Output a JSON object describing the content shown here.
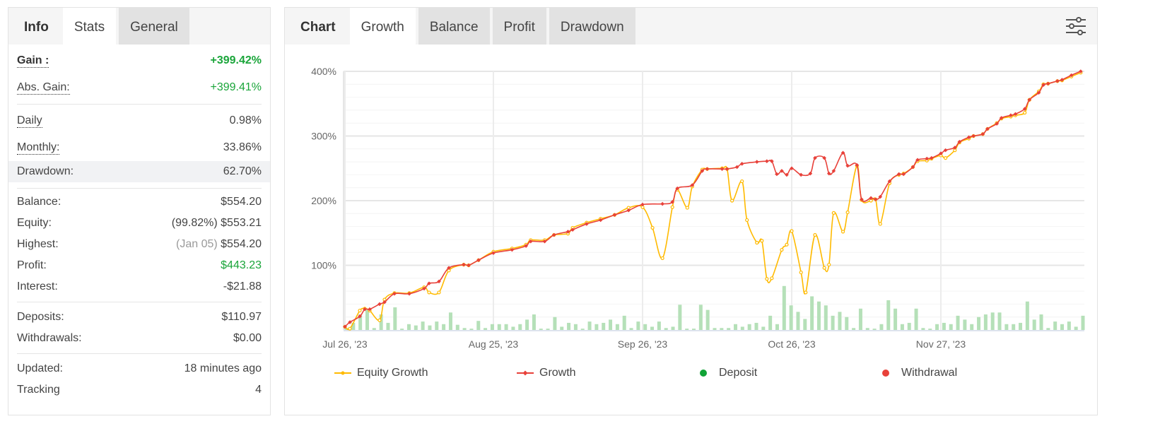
{
  "left_panel": {
    "tabs": [
      "Info",
      "Stats",
      "General"
    ],
    "active_tab": "Stats",
    "gain": {
      "label": "Gain :",
      "value": "+399.42%"
    },
    "abs_gain": {
      "label": "Abs. Gain:",
      "value": "+399.41%"
    },
    "daily": {
      "label": "Daily",
      "value": "0.98%"
    },
    "monthly": {
      "label": "Monthly:",
      "value": "33.86%"
    },
    "drawdown": {
      "label": "Drawdown:",
      "value": "62.70%"
    },
    "balance": {
      "label": "Balance:",
      "value": "$554.20"
    },
    "equity": {
      "label": "Equity:",
      "note": "(99.82%)",
      "value": "$553.21"
    },
    "highest": {
      "label": "Highest:",
      "note": "(Jan 05)",
      "value": "$554.20"
    },
    "profit": {
      "label": "Profit:",
      "value": "$443.23"
    },
    "interest": {
      "label": "Interest:",
      "value": "-$21.88"
    },
    "deposits": {
      "label": "Deposits:",
      "value": "$110.97"
    },
    "withdrawals": {
      "label": "Withdrawals:",
      "value": "$0.00"
    },
    "updated": {
      "label": "Updated:",
      "value": "18 minutes ago"
    },
    "tracking": {
      "label": "Tracking",
      "value": "4"
    }
  },
  "right_panel": {
    "title": "Chart",
    "tabs": [
      "Growth",
      "Balance",
      "Profit",
      "Drawdown"
    ],
    "active_tab": "Growth",
    "settings_icon": "sliders-icon"
  },
  "colors": {
    "equity": "#ffba00",
    "growth": "#e8413a",
    "bars": "#b5e0b8",
    "deposit": "#10a336",
    "withdrawal": "#e8413a",
    "positive": "#1aa53a"
  },
  "chart_data": {
    "type": "line",
    "ylim": [
      0,
      400
    ],
    "yticks": [
      "100%",
      "200%",
      "300%",
      "400%"
    ],
    "ytick_values": [
      100,
      200,
      300,
      400
    ],
    "xticks": [
      "Jul 26, '23",
      "Aug 25, '23",
      "Sep 26, '23",
      "Oct 26, '23",
      "Nov 27, '23"
    ],
    "xtick_dates": [
      "2023-07-26",
      "2023-08-25",
      "2023-09-26",
      "2023-10-26",
      "2023-11-27"
    ],
    "grid": true,
    "legend_position": "bottom",
    "legend": [
      "Equity Growth",
      "Growth",
      "Deposit",
      "Withdrawal"
    ],
    "series": [
      {
        "name": "Growth",
        "points": [
          [
            "2023-07-26",
            5
          ],
          [
            "2023-07-27",
            12
          ],
          [
            "2023-07-29",
            21
          ],
          [
            "2023-07-30",
            32
          ],
          [
            "2023-07-31",
            32
          ],
          [
            "2023-08-02",
            40
          ],
          [
            "2023-08-03",
            43
          ],
          [
            "2023-08-05",
            56
          ],
          [
            "2023-08-08",
            56
          ],
          [
            "2023-08-11",
            64
          ],
          [
            "2023-08-12",
            72
          ],
          [
            "2023-08-14",
            75
          ],
          [
            "2023-08-16",
            96
          ],
          [
            "2023-08-19",
            101
          ],
          [
            "2023-08-20",
            100
          ],
          [
            "2023-08-22",
            108
          ],
          [
            "2023-08-25",
            119
          ],
          [
            "2023-08-29",
            124
          ],
          [
            "2023-09-01",
            130
          ],
          [
            "2023-09-02",
            137
          ],
          [
            "2023-09-05",
            137
          ],
          [
            "2023-09-07",
            147
          ],
          [
            "2023-09-10",
            152
          ],
          [
            "2023-09-11",
            155
          ],
          [
            "2023-09-14",
            164
          ],
          [
            "2023-09-17",
            170
          ],
          [
            "2023-09-20",
            178
          ],
          [
            "2023-09-23",
            185
          ],
          [
            "2023-09-26",
            194
          ],
          [
            "2023-09-30",
            195
          ],
          [
            "2023-10-02",
            198
          ],
          [
            "2023-10-03",
            219
          ],
          [
            "2023-10-06",
            224
          ],
          [
            "2023-10-08",
            246
          ],
          [
            "2023-10-09",
            249
          ],
          [
            "2023-10-12",
            249
          ],
          [
            "2023-10-13",
            249
          ],
          [
            "2023-10-15",
            252
          ],
          [
            "2023-10-16",
            257
          ],
          [
            "2023-10-19",
            260
          ],
          [
            "2023-10-21",
            261
          ],
          [
            "2023-10-22",
            261
          ],
          [
            "2023-10-23",
            241
          ],
          [
            "2023-10-24",
            246
          ],
          [
            "2023-10-25",
            240
          ],
          [
            "2023-10-26",
            250
          ],
          [
            "2023-10-28",
            240
          ],
          [
            "2023-10-30",
            242
          ],
          [
            "2023-10-31",
            266
          ],
          [
            "2023-11-02",
            266
          ],
          [
            "2023-11-03",
            242
          ],
          [
            "2023-11-04",
            246
          ],
          [
            "2023-11-06",
            274
          ],
          [
            "2023-11-07",
            254
          ],
          [
            "2023-11-09",
            255
          ],
          [
            "2023-11-10",
            202
          ],
          [
            "2023-11-12",
            204
          ],
          [
            "2023-11-13",
            202
          ],
          [
            "2023-11-14",
            206
          ],
          [
            "2023-11-16",
            230
          ],
          [
            "2023-11-18",
            241
          ],
          [
            "2023-11-19",
            241
          ],
          [
            "2023-11-21",
            252
          ],
          [
            "2023-11-22",
            263
          ],
          [
            "2023-11-24",
            265
          ],
          [
            "2023-11-25",
            266
          ],
          [
            "2023-11-27",
            273
          ],
          [
            "2023-11-28",
            278
          ],
          [
            "2023-11-30",
            282
          ],
          [
            "2023-12-01",
            291
          ],
          [
            "2023-12-03",
            298
          ],
          [
            "2023-12-04",
            300
          ],
          [
            "2023-12-06",
            303
          ],
          [
            "2023-12-07",
            311
          ],
          [
            "2023-12-09",
            319
          ],
          [
            "2023-12-10",
            328
          ],
          [
            "2023-12-12",
            332
          ],
          [
            "2023-12-13",
            334
          ],
          [
            "2023-12-15",
            342
          ],
          [
            "2023-12-16",
            356
          ],
          [
            "2023-12-18",
            367
          ],
          [
            "2023-12-19",
            379
          ],
          [
            "2023-12-20",
            381
          ],
          [
            "2023-12-22",
            385
          ],
          [
            "2023-12-23",
            387
          ],
          [
            "2023-12-25",
            394
          ],
          [
            "2023-12-27",
            400
          ]
        ]
      },
      {
        "name": "Equity Growth",
        "points": [
          [
            "2023-07-26",
            5
          ],
          [
            "2023-07-27",
            2
          ],
          [
            "2023-07-29",
            30
          ],
          [
            "2023-07-30",
            33
          ],
          [
            "2023-07-31",
            30
          ],
          [
            "2023-08-02",
            15
          ],
          [
            "2023-08-03",
            47
          ],
          [
            "2023-08-05",
            57
          ],
          [
            "2023-08-08",
            57
          ],
          [
            "2023-08-11",
            66
          ],
          [
            "2023-08-12",
            58
          ],
          [
            "2023-08-14",
            58
          ],
          [
            "2023-08-16",
            92
          ],
          [
            "2023-08-19",
            101
          ],
          [
            "2023-08-20",
            100
          ],
          [
            "2023-08-22",
            108
          ],
          [
            "2023-08-25",
            121
          ],
          [
            "2023-08-29",
            126
          ],
          [
            "2023-09-01",
            132
          ],
          [
            "2023-09-02",
            139
          ],
          [
            "2023-09-05",
            139
          ],
          [
            "2023-09-07",
            147
          ],
          [
            "2023-09-10",
            149
          ],
          [
            "2023-09-11",
            158
          ],
          [
            "2023-09-14",
            166
          ],
          [
            "2023-09-17",
            172
          ],
          [
            "2023-09-20",
            178
          ],
          [
            "2023-09-23",
            189
          ],
          [
            "2023-09-26",
            190
          ],
          [
            "2023-09-28",
            158
          ],
          [
            "2023-09-30",
            111
          ],
          [
            "2023-10-02",
            190
          ],
          [
            "2023-10-03",
            217
          ],
          [
            "2023-10-05",
            189
          ],
          [
            "2023-10-06",
            222
          ],
          [
            "2023-10-08",
            248
          ],
          [
            "2023-10-09",
            249
          ],
          [
            "2023-10-12",
            250
          ],
          [
            "2023-10-13",
            249
          ],
          [
            "2023-10-14",
            200
          ],
          [
            "2023-10-16",
            230
          ],
          [
            "2023-10-17",
            170
          ],
          [
            "2023-10-19",
            135
          ],
          [
            "2023-10-20",
            138
          ],
          [
            "2023-10-21",
            79
          ],
          [
            "2023-10-22",
            80
          ],
          [
            "2023-10-24",
            124
          ],
          [
            "2023-10-25",
            132
          ],
          [
            "2023-10-26",
            153
          ],
          [
            "2023-10-28",
            89
          ],
          [
            "2023-10-29",
            58
          ],
          [
            "2023-10-31",
            147
          ],
          [
            "2023-11-02",
            96
          ],
          [
            "2023-11-03",
            101
          ],
          [
            "2023-11-04",
            181
          ],
          [
            "2023-11-06",
            152
          ],
          [
            "2023-11-07",
            182
          ],
          [
            "2023-11-09",
            254
          ],
          [
            "2023-11-10",
            201
          ],
          [
            "2023-11-12",
            200
          ],
          [
            "2023-11-13",
            202
          ],
          [
            "2023-11-14",
            164
          ],
          [
            "2023-11-16",
            227
          ],
          [
            "2023-11-18",
            240
          ],
          [
            "2023-11-19",
            242
          ],
          [
            "2023-11-21",
            252
          ],
          [
            "2023-11-22",
            261
          ],
          [
            "2023-11-24",
            262
          ],
          [
            "2023-11-25",
            265
          ],
          [
            "2023-11-27",
            270
          ],
          [
            "2023-11-28",
            266
          ],
          [
            "2023-11-30",
            278
          ],
          [
            "2023-12-01",
            290
          ],
          [
            "2023-12-03",
            296
          ],
          [
            "2023-12-04",
            300
          ],
          [
            "2023-12-06",
            303
          ],
          [
            "2023-12-07",
            311
          ],
          [
            "2023-12-09",
            320
          ],
          [
            "2023-12-10",
            327
          ],
          [
            "2023-12-12",
            330
          ],
          [
            "2023-12-13",
            332
          ],
          [
            "2023-12-15",
            336
          ],
          [
            "2023-12-16",
            356
          ],
          [
            "2023-12-18",
            369
          ],
          [
            "2023-12-19",
            380
          ],
          [
            "2023-12-20",
            381
          ],
          [
            "2023-12-22",
            385
          ],
          [
            "2023-12-23",
            386
          ],
          [
            "2023-12-25",
            392
          ],
          [
            "2023-12-27",
            398
          ]
        ]
      }
    ],
    "bars": [
      3,
      11,
      24,
      31,
      3,
      24,
      11,
      35,
      2,
      9,
      7,
      13,
      7,
      13,
      9,
      27,
      8,
      3,
      2,
      14,
      3,
      9,
      9,
      9,
      5,
      9,
      16,
      24,
      2,
      2,
      20,
      5,
      11,
      9,
      2,
      13,
      9,
      11,
      16,
      9,
      22,
      3,
      13,
      9,
      5,
      13,
      3,
      5,
      39,
      2,
      2,
      39,
      31,
      3,
      3,
      3,
      9,
      5,
      9,
      11,
      5,
      22,
      9,
      68,
      38,
      28,
      17,
      52,
      44,
      38,
      22,
      28,
      20,
      3,
      33,
      3,
      2,
      9,
      46,
      33,
      9,
      11,
      33,
      3,
      2,
      9,
      11,
      9,
      22,
      16,
      9,
      20,
      24,
      27,
      27,
      9,
      9,
      11,
      44,
      16,
      24,
      3,
      13,
      9,
      13,
      5,
      22
    ]
  }
}
